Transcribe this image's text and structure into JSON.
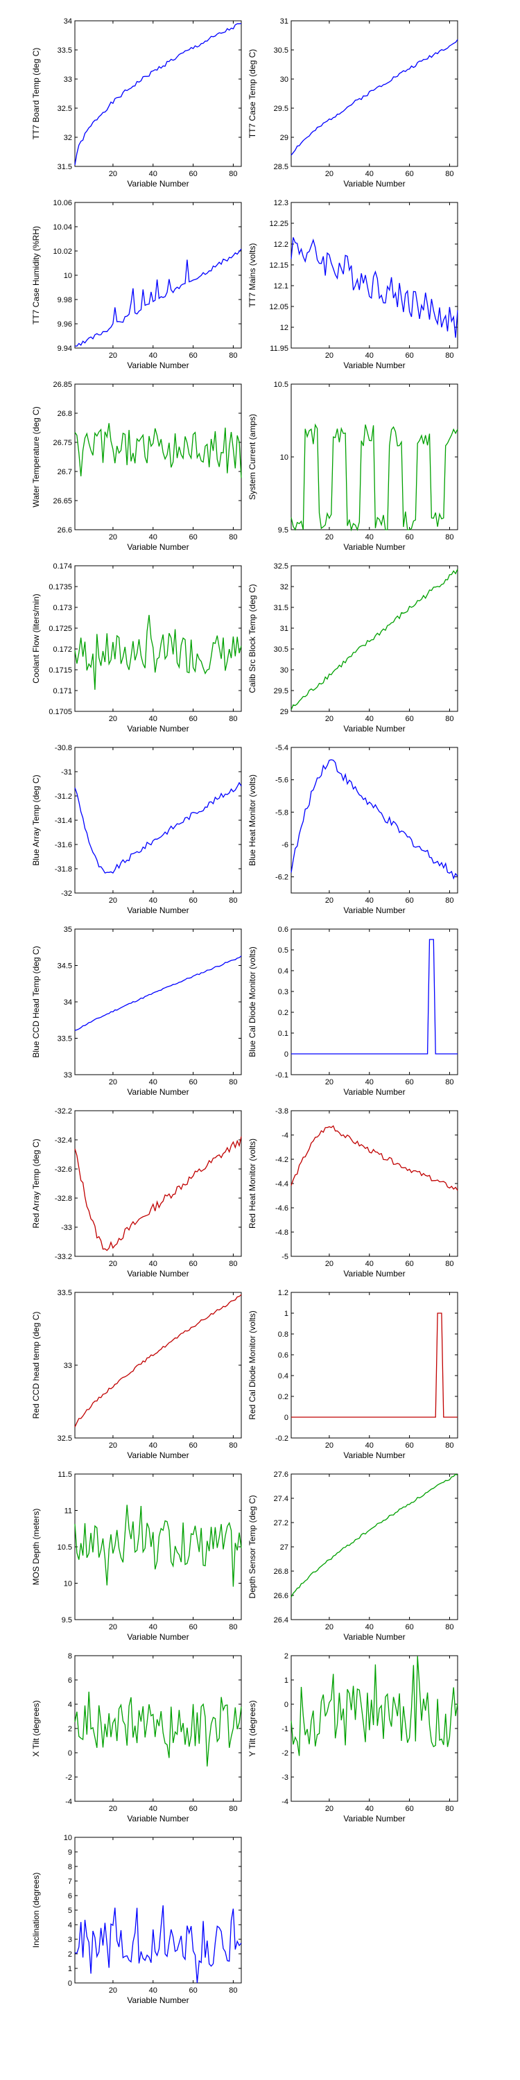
{
  "chart_data": [
    {
      "type": "line",
      "xlabel": "Variable Number",
      "ylabel": "TT7 Board Temp (deg C)",
      "xlim": [
        1,
        84
      ],
      "ylim": [
        31.5,
        34
      ],
      "xticks": [
        20,
        40,
        60,
        80
      ],
      "yticks": [
        31.5,
        32,
        32.5,
        33,
        33.5,
        34
      ],
      "ytick_labels": [
        "31.5",
        "32",
        "32.5",
        "33",
        "33.5",
        "34"
      ],
      "color": "#0000ff",
      "gen": {
        "kind": "curve",
        "start": 31.52,
        "end": 33.95,
        "shape": 0.55,
        "noise": 0.03,
        "seed": 1
      }
    },
    {
      "type": "line",
      "xlabel": "Variable Number",
      "ylabel": "TT7 Case Temp (deg C)",
      "xlim": [
        1,
        84
      ],
      "ylim": [
        28.5,
        31
      ],
      "xticks": [
        20,
        40,
        60,
        80
      ],
      "yticks": [
        28.5,
        29,
        29.5,
        30,
        30.5,
        31
      ],
      "ytick_labels": [
        "28.5",
        "29",
        "29.5",
        "30",
        "30.5",
        "31"
      ],
      "color": "#0000ff",
      "gen": {
        "kind": "curve",
        "start": 28.7,
        "end": 30.65,
        "shape": 0.8,
        "noise": 0.03,
        "seed": 2
      }
    },
    {
      "type": "line",
      "xlabel": "Variable Number",
      "ylabel": "TT7 Case Humidity (%RH)",
      "xlim": [
        1,
        84
      ],
      "ylim": [
        9.94,
        10.06
      ],
      "xticks": [
        20,
        40,
        60,
        80
      ],
      "yticks": [
        9.94,
        9.96,
        9.98,
        10,
        10.02,
        10.04,
        10.06
      ],
      "ytick_labels": [
        "9.94",
        "9.96",
        "9.98",
        "10",
        "10.02",
        "10.04",
        "10.06"
      ],
      "color": "#0000ff",
      "gen": {
        "kind": "steps",
        "base": 9.94,
        "end": 10.02,
        "spike": 0.02,
        "seed": 3
      }
    },
    {
      "type": "line",
      "xlabel": "Variable Number",
      "ylabel": "TT7 Mains  (volts)",
      "xlim": [
        1,
        84
      ],
      "ylim": [
        11.95,
        12.3
      ],
      "xticks": [
        20,
        40,
        60,
        80
      ],
      "yticks": [
        11.95,
        12,
        12.05,
        12.1,
        12.15,
        12.2,
        12.25,
        12.3
      ],
      "ytick_labels": [
        "11.95",
        "12",
        "12.05",
        "12.1",
        "12.15",
        "12.2",
        "12.25",
        "12.3"
      ],
      "color": "#0000ff",
      "gen": {
        "kind": "drift",
        "start": 12.2,
        "end": 12.01,
        "noise": 0.04,
        "seed": 4
      }
    },
    {
      "type": "line",
      "xlabel": "Variable Number",
      "ylabel": "Water Temperature (deg C)",
      "xlim": [
        1,
        84
      ],
      "ylim": [
        26.6,
        26.85
      ],
      "xticks": [
        20,
        40,
        60,
        80
      ],
      "yticks": [
        26.6,
        26.65,
        26.7,
        26.75,
        26.8,
        26.85
      ],
      "ytick_labels": [
        "26.6",
        "26.65",
        "26.7",
        "26.75",
        "26.8",
        "26.85"
      ],
      "color": "#00a000",
      "gen": {
        "kind": "noise",
        "mean": 26.74,
        "amp": 0.05,
        "seed": 5
      }
    },
    {
      "type": "line",
      "xlabel": "Variable Number",
      "ylabel": "System Current (amps)",
      "xlim": [
        1,
        84
      ],
      "ylim": [
        9.5,
        10.5
      ],
      "xticks": [
        20,
        40,
        60,
        80
      ],
      "yticks": [
        9.5,
        10,
        10.5
      ],
      "ytick_labels": [
        "9.5",
        "10",
        "10.5"
      ],
      "color": "#00a000",
      "gen": {
        "kind": "square",
        "low": 9.55,
        "high": 10.15,
        "seed": 6
      }
    },
    {
      "type": "line",
      "xlabel": "Variable Number",
      "ylabel": "Coolant Flow (liters/min)",
      "xlim": [
        1,
        84
      ],
      "ylim": [
        0.1705,
        0.174
      ],
      "xticks": [
        20,
        40,
        60,
        80
      ],
      "yticks": [
        0.1705,
        0.171,
        0.1715,
        0.172,
        0.1725,
        0.173,
        0.1735,
        0.174
      ],
      "ytick_labels": [
        "0.1705",
        "0.171",
        "0.1715",
        "0.172",
        "0.1725",
        "0.173",
        "0.1735",
        "0.174"
      ],
      "color": "#00a000",
      "gen": {
        "kind": "noise",
        "mean": 0.1719,
        "amp": 0.0007,
        "seed": 7
      }
    },
    {
      "type": "line",
      "xlabel": "Variable Number",
      "ylabel": "Calib Src Block Temp (deg C)",
      "xlim": [
        1,
        84
      ],
      "ylim": [
        29,
        32.5
      ],
      "xticks": [
        20,
        40,
        60,
        80
      ],
      "yticks": [
        29,
        29.5,
        30,
        30.5,
        31,
        31.5,
        32,
        32.5
      ],
      "ytick_labels": [
        "29",
        "29.5",
        "30",
        "30.5",
        "31",
        "31.5",
        "32",
        "32.5"
      ],
      "color": "#00a000",
      "gen": {
        "kind": "curve",
        "start": 29.05,
        "end": 32.4,
        "shape": 0.95,
        "noise": 0.04,
        "seed": 8
      }
    },
    {
      "type": "line",
      "xlabel": "Variable Number",
      "ylabel": "Blue Array Temp (deg C)",
      "xlim": [
        1,
        84
      ],
      "ylim": [
        -32,
        -30.8
      ],
      "xticks": [
        20,
        40,
        60,
        80
      ],
      "yticks": [
        -32,
        -31.8,
        -31.6,
        -31.4,
        -31.2,
        -31,
        -30.8
      ],
      "ytick_labels": [
        "-32",
        "-31.8",
        "-31.6",
        "-31.4",
        "-31.2",
        "-31",
        "-30.8"
      ],
      "color": "#0000ff",
      "gen": {
        "kind": "dip",
        "start": -31.05,
        "min": -31.85,
        "minx": 18,
        "end": -31.1,
        "noise": 0.03,
        "seed": 9
      }
    },
    {
      "type": "line",
      "xlabel": "Variable Number",
      "ylabel": "Blue Heat Monitor (volts)",
      "xlim": [
        1,
        84
      ],
      "ylim": [
        -6.3,
        -5.4
      ],
      "xticks": [
        20,
        40,
        60,
        80
      ],
      "yticks": [
        -6.2,
        -6,
        -5.8,
        -5.6,
        -5.4
      ],
      "ytick_labels": [
        "-6.2",
        "-6",
        "-5.8",
        "-5.6",
        "-5.4"
      ],
      "color": "#0000ff",
      "gen": {
        "kind": "hump",
        "start": -6.2,
        "max": -5.48,
        "maxx": 22,
        "end": -6.2,
        "noise": 0.04,
        "seed": 10
      }
    },
    {
      "type": "line",
      "xlabel": "Variable Number",
      "ylabel": "Blue CCD Head Temp (deg C)",
      "xlim": [
        1,
        84
      ],
      "ylim": [
        33,
        35
      ],
      "xticks": [
        20,
        40,
        60,
        80
      ],
      "yticks": [
        33,
        33.5,
        34,
        34.5,
        35
      ],
      "ytick_labels": [
        "33",
        "33.5",
        "34",
        "34.5",
        "35"
      ],
      "color": "#0000ff",
      "gen": {
        "kind": "curve",
        "start": 33.6,
        "end": 34.62,
        "shape": 0.9,
        "noise": 0.02,
        "seed": 11
      }
    },
    {
      "type": "line",
      "xlabel": "Variable Number",
      "ylabel": "Blue Cal Diode Monitor (volts)",
      "xlim": [
        1,
        84
      ],
      "ylim": [
        -0.1,
        0.6
      ],
      "xticks": [
        20,
        40,
        60,
        80
      ],
      "yticks": [
        -0.1,
        0,
        0.1,
        0.2,
        0.3,
        0.4,
        0.5,
        0.6
      ],
      "ytick_labels": [
        "-0.1",
        "0",
        "0.1",
        "0.2",
        "0.3",
        "0.4",
        "0.5",
        "0.6"
      ],
      "color": "#0000ff",
      "gen": {
        "kind": "pulse",
        "base": 0,
        "high": 0.55,
        "from": 70,
        "to": 72
      }
    },
    {
      "type": "line",
      "xlabel": "Variable Number",
      "ylabel": "Red Array Temp (deg C)",
      "xlim": [
        1,
        84
      ],
      "ylim": [
        -33.2,
        -32.2
      ],
      "xticks": [
        20,
        40,
        60,
        80
      ],
      "yticks": [
        -33.2,
        -33,
        -32.8,
        -32.6,
        -32.4,
        -32.2
      ],
      "ytick_labels": [
        "-33.2",
        "-33",
        "-32.8",
        "-32.6",
        "-32.4",
        "-32.2"
      ],
      "color": "#c00000",
      "gen": {
        "kind": "dip",
        "start": -32.4,
        "min": -33.15,
        "minx": 18,
        "end": -32.4,
        "noise": 0.04,
        "seed": 13
      }
    },
    {
      "type": "line",
      "xlabel": "Variable Number",
      "ylabel": "Red Heat Monitor (volts)",
      "xlim": [
        1,
        84
      ],
      "ylim": [
        -5,
        -3.8
      ],
      "xticks": [
        20,
        40,
        60,
        80
      ],
      "yticks": [
        -5,
        -4.8,
        -4.6,
        -4.4,
        -4.2,
        -4,
        -3.8
      ],
      "ytick_labels": [
        "-5",
        "-4.8",
        "-4.6",
        "-4.4",
        "-4.2",
        "-4",
        "-3.8"
      ],
      "color": "#c00000",
      "gen": {
        "kind": "hump",
        "start": -4.45,
        "max": -3.93,
        "maxx": 22,
        "end": -4.45,
        "noise": 0.04,
        "seed": 14
      }
    },
    {
      "type": "line",
      "xlabel": "Variable Number",
      "ylabel": "Red CCD head temp (deg C)",
      "xlim": [
        1,
        84
      ],
      "ylim": [
        32.5,
        33.5
      ],
      "xticks": [
        20,
        40,
        60,
        80
      ],
      "yticks": [
        32.5,
        33,
        33.5
      ],
      "ytick_labels": [
        "32.5",
        "33",
        "33.5"
      ],
      "color": "#c00000",
      "gen": {
        "kind": "curve",
        "start": 32.58,
        "end": 33.48,
        "shape": 0.8,
        "noise": 0.02,
        "seed": 15
      }
    },
    {
      "type": "line",
      "xlabel": "Variable Number",
      "ylabel": "Red Cal Diode Monitor (volts)",
      "xlim": [
        1,
        84
      ],
      "ylim": [
        -0.2,
        1.2
      ],
      "xticks": [
        20,
        40,
        60,
        80
      ],
      "yticks": [
        -0.2,
        0,
        0.2,
        0.4,
        0.6,
        0.8,
        1,
        1.2
      ],
      "ytick_labels": [
        "-0.2",
        "0",
        "0.2",
        "0.4",
        "0.6",
        "0.8",
        "1",
        "1.2"
      ],
      "color": "#c00000",
      "gen": {
        "kind": "pulse",
        "base": 0,
        "high": 1.0,
        "from": 74,
        "to": 76
      }
    },
    {
      "type": "line",
      "xlabel": "Variable Number",
      "ylabel": "MOS Depth  (meters)",
      "xlim": [
        1,
        84
      ],
      "ylim": [
        9.5,
        11.5
      ],
      "xticks": [
        20,
        40,
        60,
        80
      ],
      "yticks": [
        9.5,
        10,
        10.5,
        11,
        11.5
      ],
      "ytick_labels": [
        "9.5",
        "10",
        "10.5",
        "11",
        "11.5"
      ],
      "color": "#00a000",
      "gen": {
        "kind": "noise",
        "mean": 10.55,
        "amp": 0.45,
        "seed": 17
      }
    },
    {
      "type": "line",
      "xlabel": "Variable Number",
      "ylabel": "Depth Sensor Temp (deg C)",
      "xlim": [
        1,
        84
      ],
      "ylim": [
        26.4,
        27.6
      ],
      "xticks": [
        20,
        40,
        60,
        80
      ],
      "yticks": [
        26.4,
        26.6,
        26.8,
        27,
        27.2,
        27.4,
        27.6
      ],
      "ytick_labels": [
        "26.4",
        "26.6",
        "26.8",
        "27",
        "27.2",
        "27.4",
        "27.6"
      ],
      "color": "#00a000",
      "gen": {
        "kind": "curve",
        "start": 26.58,
        "end": 27.6,
        "shape": 0.8,
        "noise": 0.02,
        "seed": 18
      }
    },
    {
      "type": "line",
      "xlabel": "Variable Number",
      "ylabel": "X Tilt  (degrees)",
      "xlim": [
        1,
        84
      ],
      "ylim": [
        -4,
        8
      ],
      "xticks": [
        20,
        40,
        60,
        80
      ],
      "yticks": [
        -4,
        -2,
        0,
        2,
        4,
        6,
        8
      ],
      "ytick_labels": [
        "-4",
        "-2",
        "0",
        "2",
        "4",
        "6",
        "8"
      ],
      "color": "#00a000",
      "gen": {
        "kind": "noise",
        "mean": 2.2,
        "amp": 2.6,
        "seed": 19
      }
    },
    {
      "type": "line",
      "xlabel": "Variable Number",
      "ylabel": "Y Tilt  (degrees)",
      "xlim": [
        1,
        84
      ],
      "ylim": [
        -4,
        2
      ],
      "xticks": [
        20,
        40,
        60,
        80
      ],
      "yticks": [
        -4,
        -3,
        -2,
        -1,
        0,
        1,
        2
      ],
      "ytick_labels": [
        "-4",
        "-3",
        "-2",
        "-1",
        "0",
        "1",
        "2"
      ],
      "color": "#00a000",
      "gen": {
        "kind": "noise",
        "mean": -0.5,
        "amp": 1.8,
        "seed": 20
      }
    },
    {
      "type": "line",
      "xlabel": "Variable Number",
      "ylabel": "Inclination  (degrees)",
      "xlim": [
        1,
        84
      ],
      "ylim": [
        0,
        10
      ],
      "xticks": [
        20,
        40,
        60,
        80
      ],
      "yticks": [
        0,
        1,
        2,
        3,
        4,
        5,
        6,
        7,
        8,
        9,
        10
      ],
      "ytick_labels": [
        "0",
        "1",
        "2",
        "3",
        "4",
        "5",
        "6",
        "7",
        "8",
        "9",
        "10"
      ],
      "color": "#0000ff",
      "gen": {
        "kind": "noise",
        "mean": 2.8,
        "amp": 2.2,
        "seed": 21
      }
    }
  ]
}
